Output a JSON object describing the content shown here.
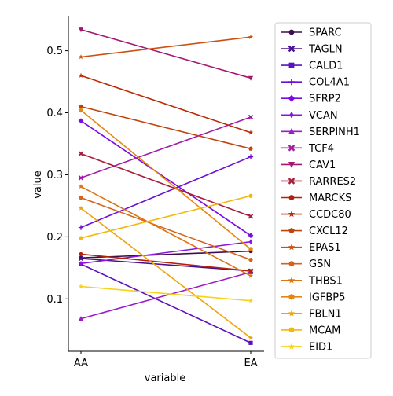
{
  "chart_data": {
    "type": "line",
    "xlabel": "variable",
    "ylabel": "value",
    "categories": [
      "AA",
      "EA"
    ],
    "ylim": [
      0.0155,
      0.5565
    ],
    "yticks": [
      "0.1",
      "0.2",
      "0.3",
      "0.4",
      "0.5"
    ],
    "grid": false,
    "legend_position": "outside-right",
    "series": [
      {
        "name": "SPARC",
        "values": [
          0.166,
          0.177
        ],
        "color": "#3b0f4f",
        "marker": "circle"
      },
      {
        "name": "TAGLN",
        "values": [
          0.165,
          0.145
        ],
        "color": "#4a108f",
        "marker": "x"
      },
      {
        "name": "CALD1",
        "values": [
          0.156,
          0.029
        ],
        "color": "#5b10bf",
        "marker": "square"
      },
      {
        "name": "COL4A1",
        "values": [
          0.215,
          0.329
        ],
        "color": "#6a0fd8",
        "marker": "plus"
      },
      {
        "name": "SFRP2",
        "values": [
          0.387,
          0.202
        ],
        "color": "#7a0ae6",
        "marker": "diamond"
      },
      {
        "name": "VCAN",
        "values": [
          0.157,
          0.192
        ],
        "color": "#8b14e0",
        "marker": "thin-diamond"
      },
      {
        "name": "SERPINH1",
        "values": [
          0.068,
          0.143
        ],
        "color": "#9a1ec9",
        "marker": "triangle-up"
      },
      {
        "name": "TCF4",
        "values": [
          0.295,
          0.393
        ],
        "color": "#a21aa9",
        "marker": "x"
      },
      {
        "name": "CAV1",
        "values": [
          0.534,
          0.456
        ],
        "color": "#a4166f",
        "marker": "triangle-down"
      },
      {
        "name": "RARRES2",
        "values": [
          0.334,
          0.233
        ],
        "color": "#a61e3c",
        "marker": "x"
      },
      {
        "name": "MARCKS",
        "values": [
          0.172,
          0.145
        ],
        "color": "#b3200b",
        "marker": "circle"
      },
      {
        "name": "CCDC80",
        "values": [
          0.46,
          0.368
        ],
        "color": "#bb2906",
        "marker": "star"
      },
      {
        "name": "CXCL12",
        "values": [
          0.41,
          0.342
        ],
        "color": "#c0430d",
        "marker": "pentagon"
      },
      {
        "name": "EPAS1",
        "values": [
          0.49,
          0.522
        ],
        "color": "#cc500f",
        "marker": "star"
      },
      {
        "name": "GSN",
        "values": [
          0.263,
          0.163
        ],
        "color": "#d4621a",
        "marker": "circle"
      },
      {
        "name": "THBS1",
        "values": [
          0.281,
          0.137
        ],
        "color": "#dc7412",
        "marker": "star"
      },
      {
        "name": "IGFBP5",
        "values": [
          0.404,
          0.18
        ],
        "color": "#e4870e",
        "marker": "hexagon"
      },
      {
        "name": "FBLN1",
        "values": [
          0.246,
          0.037
        ],
        "color": "#eda40d",
        "marker": "star"
      },
      {
        "name": "MCAM",
        "values": [
          0.198,
          0.266
        ],
        "color": "#f3b80e",
        "marker": "circle"
      },
      {
        "name": "EID1",
        "values": [
          0.12,
          0.097
        ],
        "color": "#f8d21a",
        "marker": "star"
      }
    ]
  }
}
